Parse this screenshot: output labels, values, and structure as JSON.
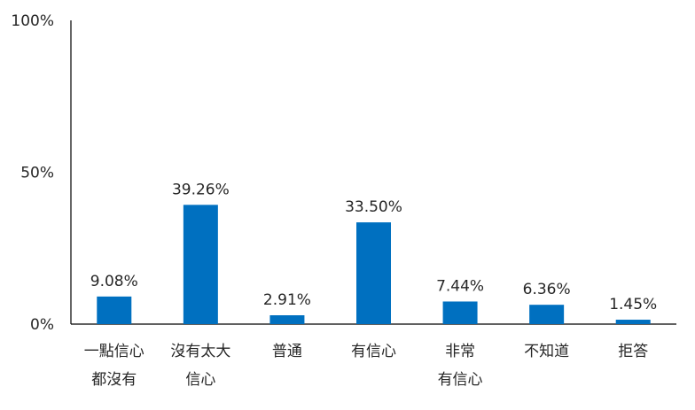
{
  "chart_data": {
    "type": "bar",
    "categories": [
      [
        "一點信心",
        "都沒有"
      ],
      [
        "沒有太大",
        "信心"
      ],
      [
        "普通"
      ],
      [
        "有信心"
      ],
      [
        "非常",
        "有信心"
      ],
      [
        "不知道"
      ],
      [
        "拒答"
      ]
    ],
    "values": [
      9.08,
      39.26,
      2.91,
      33.5,
      7.44,
      6.36,
      1.45
    ],
    "data_labels": [
      "9.08%",
      "39.26%",
      "2.91%",
      "33.50%",
      "7.44%",
      "6.36%",
      "1.45%"
    ],
    "y_ticks": [
      {
        "value": 0,
        "label": "0%"
      },
      {
        "value": 50,
        "label": "50%"
      },
      {
        "value": 100,
        "label": "100%"
      }
    ],
    "ylim": [
      0,
      100
    ],
    "bar_color": "#0070C0",
    "grid": false,
    "legend": "none"
  }
}
